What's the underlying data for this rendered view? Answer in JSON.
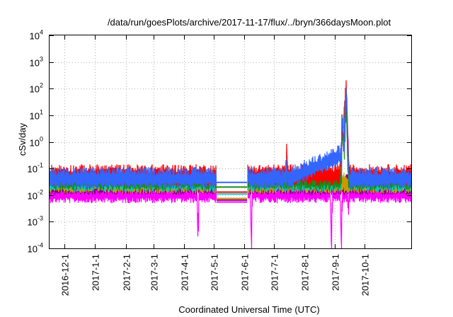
{
  "chart_data": {
    "type": "line",
    "title": "/data/run/goesPlots/archive/2017-11-17/flux/../bryn/366daysMoon.plot",
    "xlabel": "Coordinated Universal Time (UTC)",
    "ylabel": "cSv/day",
    "yscale": "log",
    "ylim": [
      0.0001,
      10000
    ],
    "xlim": [
      "2016-11-16",
      "2017-11-17"
    ],
    "yticks": [
      {
        "base": "10",
        "exp": "-4",
        "value": 0.0001
      },
      {
        "base": "10",
        "exp": "-3",
        "value": 0.001
      },
      {
        "base": "10",
        "exp": "-2",
        "value": 0.01
      },
      {
        "base": "10",
        "exp": "-1",
        "value": 0.1
      },
      {
        "base": "10",
        "exp": "0",
        "value": 1
      },
      {
        "base": "10",
        "exp": "1",
        "value": 10
      },
      {
        "base": "10",
        "exp": "2",
        "value": 100
      },
      {
        "base": "10",
        "exp": "3",
        "value": 1000
      },
      {
        "base": "10",
        "exp": "4",
        "value": 10000
      }
    ],
    "xticks": [
      {
        "label": "2016-12-1",
        "date": "2016-12-01"
      },
      {
        "label": "2017-1-1",
        "date": "2017-01-01"
      },
      {
        "label": "2017-2-1",
        "date": "2017-02-01"
      },
      {
        "label": "2017-3-1",
        "date": "2017-03-01"
      },
      {
        "label": "2017-4-1",
        "date": "2017-04-01"
      },
      {
        "label": "2017-5-1",
        "date": "2017-05-01"
      },
      {
        "label": "2017-6-1",
        "date": "2017-06-01"
      },
      {
        "label": "2017-7-1",
        "date": "2017-07-01"
      },
      {
        "label": "2017-8-1",
        "date": "2017-08-01"
      },
      {
        "label": "2017-9-1",
        "date": "2017-09-01"
      },
      {
        "label": "2017-10-1",
        "date": "2017-10-01"
      }
    ],
    "grid": true,
    "legend": "none",
    "series": [
      {
        "color": "#ff0000",
        "baseline": 0.07,
        "gap_level": 0.013,
        "points": [
          [
            "2016-11-16",
            0.07
          ],
          [
            "2017-05-04",
            0.07
          ],
          [
            "2017-06-04",
            0.07
          ],
          [
            "2017-07-13",
            0.07
          ],
          [
            "2017-07-14",
            0.6
          ],
          [
            "2017-07-15",
            0.07
          ],
          [
            "2017-09-05",
            0.07
          ],
          [
            "2017-09-07",
            0.5
          ],
          [
            "2017-09-08",
            12
          ],
          [
            "2017-09-09",
            0.9
          ],
          [
            "2017-09-10",
            2
          ],
          [
            "2017-09-11",
            50
          ],
          [
            "2017-09-12",
            200
          ],
          [
            "2017-09-13",
            20
          ],
          [
            "2017-09-14",
            1
          ],
          [
            "2017-09-15",
            0.07
          ],
          [
            "2017-11-17",
            0.07
          ]
        ]
      },
      {
        "color": "#1a8c1a",
        "baseline": 0.045,
        "gap_level": 0.02,
        "points": [
          [
            "2016-11-16",
            0.045
          ],
          [
            "2017-05-04",
            0.045
          ],
          [
            "2017-06-04",
            0.045
          ],
          [
            "2017-09-07",
            0.045
          ],
          [
            "2017-09-08",
            4
          ],
          [
            "2017-09-10",
            0.5
          ],
          [
            "2017-09-12",
            60
          ],
          [
            "2017-09-14",
            0.045
          ],
          [
            "2017-11-17",
            0.045
          ]
        ]
      },
      {
        "color": "#00c8c8",
        "baseline": 0.04,
        "gap_level": 0.011,
        "points": [
          [
            "2016-11-16",
            0.04
          ],
          [
            "2017-05-04",
            0.04
          ],
          [
            "2017-06-04",
            0.04
          ],
          [
            "2017-09-07",
            0.04
          ],
          [
            "2017-09-08",
            3
          ],
          [
            "2017-09-12",
            50
          ],
          [
            "2017-09-14",
            0.04
          ],
          [
            "2017-11-17",
            0.04
          ]
        ]
      },
      {
        "color": "#cc9900",
        "baseline": 0.035,
        "gap_level": 0.0075,
        "points": [
          [
            "2016-11-16",
            0.035
          ],
          [
            "2017-05-04",
            0.035
          ],
          [
            "2017-06-04",
            0.035
          ],
          [
            "2017-11-17",
            0.035
          ]
        ]
      },
      {
        "color": "#800080",
        "baseline": 0.03,
        "gap_level": 0.0065,
        "points": [
          [
            "2016-11-16",
            0.03
          ],
          [
            "2017-05-04",
            0.03
          ],
          [
            "2017-06-04",
            0.03
          ],
          [
            "2017-11-17",
            0.03
          ]
        ]
      },
      {
        "color": "#3366ff",
        "baseline": 0.055,
        "gap_level": 0.03,
        "points": [
          [
            "2016-11-16",
            0.055
          ],
          [
            "2017-05-04",
            0.055
          ],
          [
            "2017-06-04",
            0.055
          ],
          [
            "2017-07-13",
            0.055
          ],
          [
            "2017-07-14",
            0.15
          ],
          [
            "2017-07-15",
            0.055
          ],
          [
            "2017-09-07",
            0.4
          ],
          [
            "2017-09-08",
            8
          ],
          [
            "2017-09-10",
            1
          ],
          [
            "2017-09-12",
            120
          ],
          [
            "2017-09-14",
            0.5
          ],
          [
            "2017-09-15",
            0.055
          ],
          [
            "2017-11-17",
            0.055
          ]
        ]
      },
      {
        "color": "#ff00ff",
        "baseline": 0.015,
        "gap_level": 0.0055,
        "points": [
          [
            "2016-11-16",
            0.015
          ],
          [
            "2017-04-14",
            0.015
          ],
          [
            "2017-04-15",
            0.00022
          ],
          [
            "2017-04-16",
            0.015
          ],
          [
            "2017-05-04",
            0.015
          ],
          [
            "2017-06-04",
            0.015
          ],
          [
            "2017-06-07",
            0.015
          ],
          [
            "2017-06-08",
            0.0001
          ],
          [
            "2017-06-09",
            0.015
          ],
          [
            "2017-08-27",
            0.015
          ],
          [
            "2017-08-28",
            0.0001
          ],
          [
            "2017-08-29",
            0.015
          ],
          [
            "2017-09-06",
            0.015
          ],
          [
            "2017-09-07",
            0.0001
          ],
          [
            "2017-09-08",
            0.015
          ],
          [
            "2017-09-13",
            0.015
          ],
          [
            "2017-09-14",
            0.003
          ],
          [
            "2017-09-15",
            0.015
          ],
          [
            "2017-11-17",
            0.015
          ]
        ]
      }
    ],
    "data_gap": {
      "start": "2017-05-04",
      "end": "2017-06-04"
    }
  }
}
